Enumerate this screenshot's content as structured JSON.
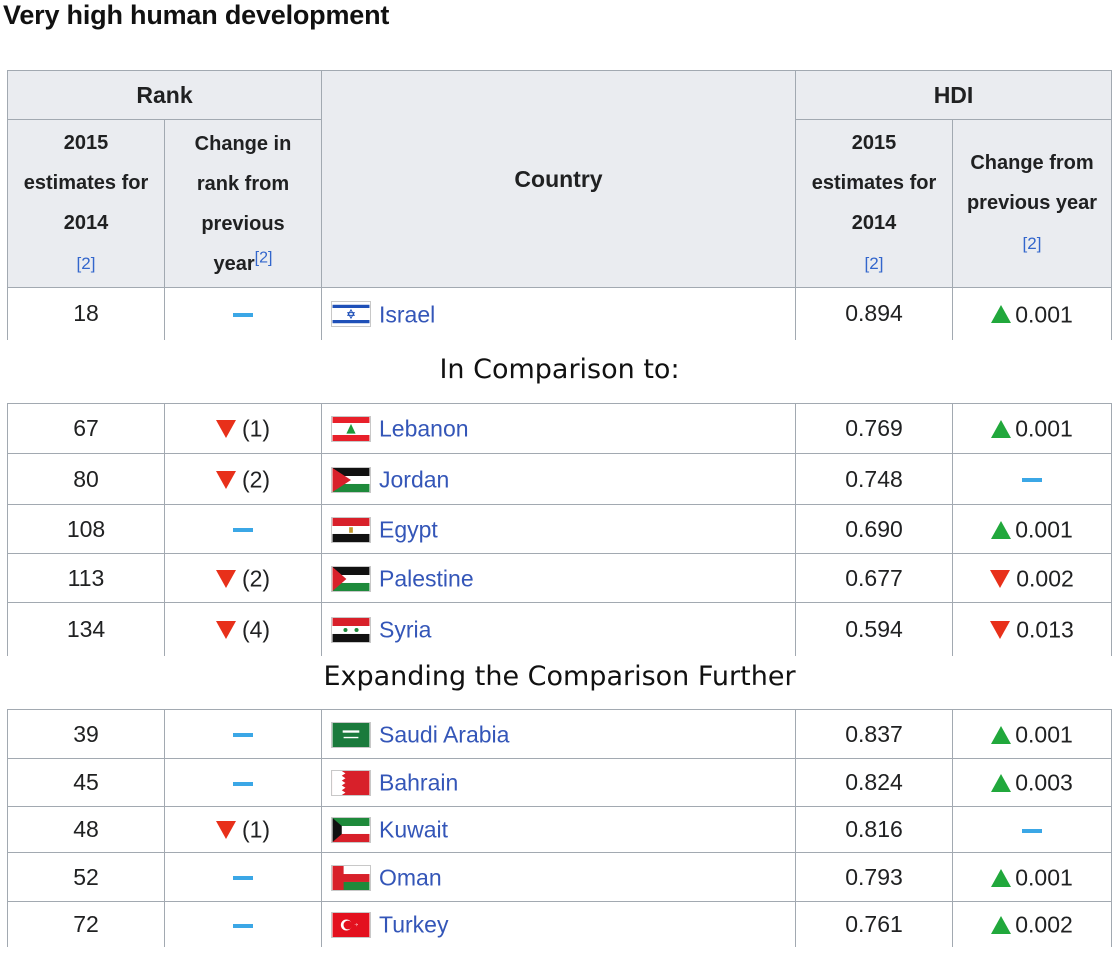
{
  "page_title": "Very high human development",
  "headers": {
    "rank": "Rank",
    "rank_estimates": [
      "2015",
      "estimates for",
      "2014"
    ],
    "rank_change": [
      "Change in",
      "rank from",
      "previous",
      "year"
    ],
    "country": "Country",
    "hdi": "HDI",
    "hdi_estimates": [
      "2015",
      "estimates for",
      "2014"
    ],
    "hdi_change": [
      "Change from",
      "previous year"
    ],
    "ref": "[2]"
  },
  "captions": {
    "comparison": "In Comparison to:",
    "expanding": "Expanding the Comparison Further"
  },
  "colors": {
    "up": "#21a83c",
    "down": "#e8301a",
    "no_change": "#3ba7e6",
    "link": "#3456b8",
    "header_bg": "#eaecf0"
  },
  "groups": [
    {
      "rows": [
        {
          "rank": "18",
          "rank_change": "",
          "rank_dir": "none",
          "country": "Israel",
          "flag": "israel-flag-icon",
          "hdi": "0.894",
          "hdi_change": "0.001",
          "hdi_dir": "up"
        }
      ]
    },
    {
      "rows": [
        {
          "rank": "67",
          "rank_change": "(1)",
          "rank_dir": "down",
          "country": "Lebanon",
          "flag": "lebanon-flag-icon",
          "hdi": "0.769",
          "hdi_change": "0.001",
          "hdi_dir": "up"
        },
        {
          "rank": "80",
          "rank_change": "(2)",
          "rank_dir": "down",
          "country": "Jordan",
          "flag": "jordan-flag-icon",
          "hdi": "0.748",
          "hdi_change": "",
          "hdi_dir": "none"
        },
        {
          "rank": "108",
          "rank_change": "",
          "rank_dir": "none",
          "country": "Egypt",
          "flag": "egypt-flag-icon",
          "hdi": "0.690",
          "hdi_change": "0.001",
          "hdi_dir": "up"
        },
        {
          "rank": "113",
          "rank_change": "(2)",
          "rank_dir": "down",
          "country": "Palestine",
          "flag": "palestine-flag-icon",
          "hdi": "0.677",
          "hdi_change": "0.002",
          "hdi_dir": "down"
        },
        {
          "rank": "134",
          "rank_change": "(4)",
          "rank_dir": "down",
          "country": "Syria",
          "flag": "syria-flag-icon",
          "hdi": "0.594",
          "hdi_change": "0.013",
          "hdi_dir": "down"
        }
      ]
    },
    {
      "rows": [
        {
          "rank": "39",
          "rank_change": "",
          "rank_dir": "none",
          "country": "Saudi Arabia",
          "flag": "saudi-arabia-flag-icon",
          "hdi": "0.837",
          "hdi_change": "0.001",
          "hdi_dir": "up"
        },
        {
          "rank": "45",
          "rank_change": "",
          "rank_dir": "none",
          "country": "Bahrain",
          "flag": "bahrain-flag-icon",
          "hdi": "0.824",
          "hdi_change": "0.003",
          "hdi_dir": "up"
        },
        {
          "rank": "48",
          "rank_change": "(1)",
          "rank_dir": "down",
          "country": "Kuwait",
          "flag": "kuwait-flag-icon",
          "hdi": "0.816",
          "hdi_change": "",
          "hdi_dir": "none"
        },
        {
          "rank": "52",
          "rank_change": "",
          "rank_dir": "none",
          "country": "Oman",
          "flag": "oman-flag-icon",
          "hdi": "0.793",
          "hdi_change": "0.001",
          "hdi_dir": "up"
        },
        {
          "rank": "72",
          "rank_change": "",
          "rank_dir": "none",
          "country": "Turkey",
          "flag": "turkey-flag-icon",
          "hdi": "0.761",
          "hdi_change": "0.002",
          "hdi_dir": "up"
        }
      ]
    }
  ]
}
